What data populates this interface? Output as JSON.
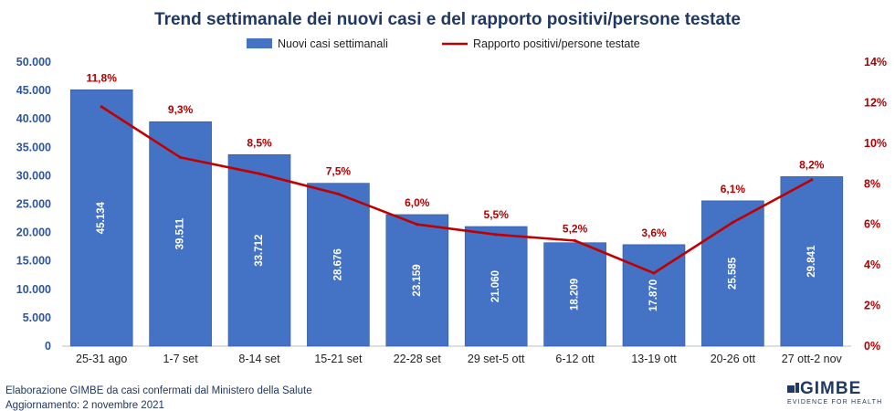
{
  "chart_data": {
    "type": "bar",
    "title": "Trend settimanale dei nuovi casi e del rapporto positivi/persone testate",
    "categories": [
      "25-31 ago",
      "1-7 set",
      "8-14 set",
      "15-21 set",
      "22-28 set",
      "29 set-5 ott",
      "6-12 ott",
      "13-19 ott",
      "20-26 ott",
      "27 ott-2 nov"
    ],
    "series": [
      {
        "name": "Nuovi casi settimanali",
        "type": "bar",
        "axis": "left",
        "color": "#4472c4",
        "values": [
          45134,
          39511,
          33712,
          28676,
          23159,
          21060,
          18209,
          17870,
          25585,
          29841
        ],
        "labels": [
          "45.134",
          "39.511",
          "33.712",
          "28.676",
          "23.159",
          "21.060",
          "18.209",
          "17.870",
          "25.585",
          "29.841"
        ]
      },
      {
        "name": "Rapporto positivi/persone testate",
        "type": "line",
        "axis": "right",
        "color": "#c00000",
        "values": [
          11.8,
          9.3,
          8.5,
          7.5,
          6.0,
          5.5,
          5.2,
          3.6,
          6.1,
          8.2
        ],
        "labels": [
          "11,8%",
          "9,3%",
          "8,5%",
          "7,5%",
          "6,0%",
          "5,5%",
          "5,2%",
          "3,6%",
          "6,1%",
          "8,2%"
        ]
      }
    ],
    "y_left": {
      "range": [
        0,
        50000
      ],
      "ticks": [
        0,
        5000,
        10000,
        15000,
        20000,
        25000,
        30000,
        35000,
        40000,
        45000,
        50000
      ],
      "tick_labels": [
        "0",
        "5.000",
        "10.000",
        "15.000",
        "20.000",
        "25.000",
        "30.000",
        "35.000",
        "40.000",
        "45.000",
        "50.000"
      ]
    },
    "y_right": {
      "range": [
        0,
        14
      ],
      "ticks": [
        0,
        2,
        4,
        6,
        8,
        10,
        12,
        14
      ],
      "tick_labels": [
        "0%",
        "2%",
        "4%",
        "6%",
        "8%",
        "10%",
        "12%",
        "14%"
      ]
    },
    "legend_position": "top-center",
    "grid": false
  },
  "footer": {
    "source": "Elaborazione GIMBE da casi confermati dal Ministero della Salute",
    "updated": "Aggiornamento:  2 novembre 2021"
  },
  "logo": {
    "name": "GIMBE",
    "tagline": "EVIDENCE FOR HEALTH"
  }
}
